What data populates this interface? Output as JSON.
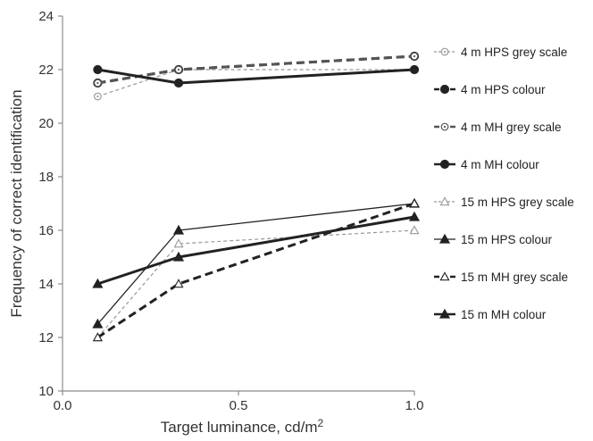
{
  "chart_data": {
    "type": "line",
    "title": "",
    "xlabel": "Target luminance, cd/m",
    "xlabel_sup": "2",
    "ylabel": "Frequency of correct identification",
    "xlim": [
      0.0,
      1.0
    ],
    "ylim": [
      10,
      24
    ],
    "xticks": [
      "0.0",
      "0.5",
      "1.0"
    ],
    "yticks": [
      "10",
      "12",
      "14",
      "16",
      "18",
      "20",
      "22",
      "24"
    ],
    "grid": false,
    "legend_position": "right",
    "x": [
      0.1,
      0.33,
      1.0
    ],
    "series": [
      {
        "name": "4 m HPS grey scale",
        "values": [
          21.0,
          22.0,
          22.0
        ],
        "marker": "open-circle",
        "line": "thin-dashed",
        "color": "#999999"
      },
      {
        "name": "4 m HPS colour",
        "values": [
          21.5,
          22.0,
          22.5
        ],
        "marker": "filled-circle",
        "line": "thick-dashed",
        "color": "#222222"
      },
      {
        "name": "4 m MH grey scale",
        "values": [
          21.5,
          22.0,
          22.5
        ],
        "marker": "open-circle",
        "line": "thick-dashed",
        "color": "#555555"
      },
      {
        "name": "4 m MH colour",
        "values": [
          22.0,
          21.5,
          22.0
        ],
        "marker": "filled-circle",
        "line": "thick-solid",
        "color": "#222222"
      },
      {
        "name": "15 m HPS grey scale",
        "values": [
          12.0,
          15.5,
          16.0
        ],
        "marker": "open-triangle",
        "line": "thin-dashed",
        "color": "#999999"
      },
      {
        "name": "15 m HPS colour",
        "values": [
          12.5,
          16.0,
          17.0
        ],
        "marker": "filled-triangle",
        "line": "thin-solid",
        "color": "#222222"
      },
      {
        "name": "15 m MH grey scale",
        "values": [
          12.0,
          14.0,
          17.0
        ],
        "marker": "open-triangle",
        "line": "thick-dashed",
        "color": "#222222"
      },
      {
        "name": "15 m MH colour",
        "values": [
          14.0,
          15.0,
          16.5
        ],
        "marker": "filled-triangle",
        "line": "thick-solid",
        "color": "#222222"
      }
    ]
  }
}
